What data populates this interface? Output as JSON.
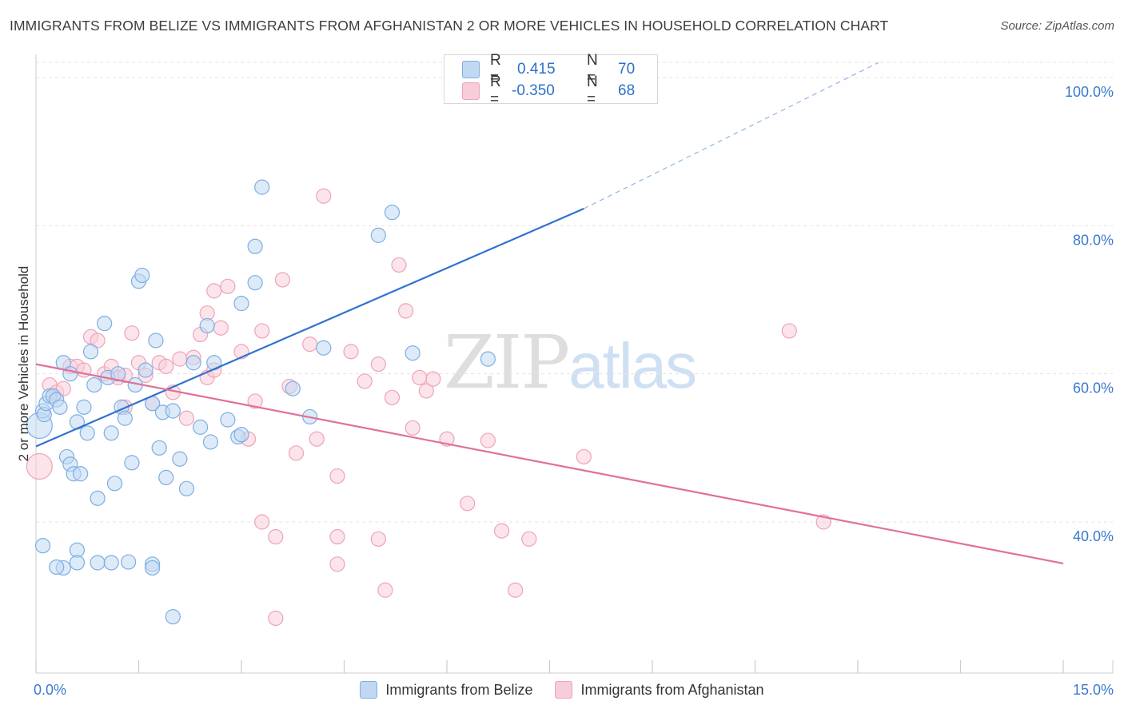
{
  "title": "IMMIGRANTS FROM BELIZE VS IMMIGRANTS FROM AFGHANISTAN 2 OR MORE VEHICLES IN HOUSEHOLD CORRELATION CHART",
  "source": "Source: ZipAtlas.com",
  "watermark": {
    "zip": "ZIP",
    "atlas": "atlas"
  },
  "legend": {
    "belize": {
      "r_label": "R =",
      "r_value": "0.415",
      "n_label": "N =",
      "n_value": "70"
    },
    "afghanistan": {
      "r_label": "R =",
      "r_value": "-0.350",
      "n_label": "N =",
      "n_value": "68"
    }
  },
  "colors": {
    "belize": "#2f72cf",
    "afghanistan": "#e0709a",
    "belize_fill": "#c1d8f3",
    "afghanistan_fill": "#f7cdd9",
    "tick_label": "#3b78cf"
  },
  "chart_data": {
    "type": "scatter",
    "title": "IMMIGRANTS FROM BELIZE VS IMMIGRANTS FROM AFGHANISTAN 2 OR MORE VEHICLES IN HOUSEHOLD CORRELATION CHART",
    "xlabel": "",
    "ylabel": "2 or more Vehicles in Household",
    "xlim": [
      0,
      15
    ],
    "ylim": [
      20,
      102
    ],
    "x_tick_labels": [
      "0.0%",
      "15.0%"
    ],
    "y_ticks": [
      40,
      60,
      80,
      100
    ],
    "y_tick_labels": [
      "40.0%",
      "60.0%",
      "80.0%",
      "100.0%"
    ],
    "grid": true,
    "legend_position": "top-center",
    "series": [
      {
        "name": "Immigrants from Belize",
        "r": 0.415,
        "n": 70,
        "trend": {
          "x0": 0,
          "y0": 50.2,
          "x1": 8.0,
          "y1": 82.3,
          "dashed_to_x": 12.3,
          "dashed_to_y": 102
        },
        "points": [
          [
            0.05,
            53.0
          ],
          [
            0.1,
            55.0
          ],
          [
            0.12,
            54.5
          ],
          [
            0.15,
            56.0
          ],
          [
            0.2,
            57.0
          ],
          [
            0.25,
            57.0
          ],
          [
            0.3,
            56.5
          ],
          [
            0.35,
            55.5
          ],
          [
            0.4,
            61.5
          ],
          [
            0.45,
            48.8
          ],
          [
            0.5,
            60.0
          ],
          [
            0.5,
            47.8
          ],
          [
            0.55,
            46.5
          ],
          [
            0.6,
            53.5
          ],
          [
            0.65,
            46.5
          ],
          [
            0.7,
            55.5
          ],
          [
            0.75,
            52.0
          ],
          [
            0.8,
            63.0
          ],
          [
            0.85,
            58.5
          ],
          [
            0.9,
            43.2
          ],
          [
            1.0,
            66.8
          ],
          [
            1.05,
            59.5
          ],
          [
            1.1,
            52.0
          ],
          [
            1.15,
            45.2
          ],
          [
            1.2,
            60.0
          ],
          [
            1.25,
            55.5
          ],
          [
            1.3,
            54.0
          ],
          [
            1.4,
            48.0
          ],
          [
            1.45,
            58.5
          ],
          [
            1.5,
            72.5
          ],
          [
            1.55,
            73.3
          ],
          [
            1.6,
            60.5
          ],
          [
            1.7,
            56.0
          ],
          [
            1.75,
            64.5
          ],
          [
            1.8,
            50.0
          ],
          [
            1.85,
            54.8
          ],
          [
            1.9,
            46.0
          ],
          [
            2.0,
            55.0
          ],
          [
            2.1,
            48.5
          ],
          [
            2.2,
            44.5
          ],
          [
            2.3,
            61.5
          ],
          [
            2.4,
            52.8
          ],
          [
            2.5,
            66.5
          ],
          [
            2.55,
            50.8
          ],
          [
            2.6,
            61.5
          ],
          [
            2.8,
            53.8
          ],
          [
            2.95,
            51.5
          ],
          [
            3.0,
            69.5
          ],
          [
            3.2,
            77.2
          ],
          [
            3.2,
            72.3
          ],
          [
            3.0,
            51.8
          ],
          [
            3.75,
            58.0
          ],
          [
            4.0,
            54.2
          ],
          [
            4.2,
            63.5
          ],
          [
            5.0,
            78.7
          ],
          [
            5.2,
            81.8
          ],
          [
            5.5,
            62.8
          ],
          [
            6.6,
            62.0
          ],
          [
            3.3,
            85.2
          ],
          [
            0.1,
            36.8
          ],
          [
            0.6,
            36.2
          ],
          [
            0.6,
            34.5
          ],
          [
            0.4,
            33.8
          ],
          [
            0.9,
            34.5
          ],
          [
            1.1,
            34.5
          ],
          [
            1.35,
            34.6
          ],
          [
            1.7,
            34.3
          ],
          [
            1.7,
            33.8
          ],
          [
            2.0,
            27.2
          ],
          [
            0.3,
            33.9
          ]
        ]
      },
      {
        "name": "Immigrants from Afghanistan",
        "r": -0.35,
        "n": 68,
        "trend": {
          "x0": 0,
          "y0": 61.3,
          "x1": 15.0,
          "y1": 34.4
        },
        "points": [
          [
            0.05,
            47.5
          ],
          [
            0.2,
            58.5
          ],
          [
            0.3,
            57.5
          ],
          [
            0.4,
            58.0
          ],
          [
            0.5,
            61.0
          ],
          [
            0.6,
            61.0
          ],
          [
            0.7,
            60.5
          ],
          [
            0.8,
            65.0
          ],
          [
            0.9,
            64.5
          ],
          [
            1.0,
            60.0
          ],
          [
            1.1,
            61.0
          ],
          [
            1.2,
            59.5
          ],
          [
            1.3,
            55.5
          ],
          [
            1.4,
            65.5
          ],
          [
            1.5,
            61.5
          ],
          [
            1.6,
            59.8
          ],
          [
            1.7,
            56.0
          ],
          [
            1.8,
            61.5
          ],
          [
            1.9,
            61.0
          ],
          [
            2.0,
            57.5
          ],
          [
            2.1,
            62.0
          ],
          [
            2.2,
            54.0
          ],
          [
            2.3,
            62.2
          ],
          [
            2.4,
            65.3
          ],
          [
            2.5,
            68.2
          ],
          [
            2.6,
            71.2
          ],
          [
            2.7,
            66.2
          ],
          [
            2.8,
            71.8
          ],
          [
            3.0,
            63.0
          ],
          [
            3.1,
            51.2
          ],
          [
            3.2,
            56.3
          ],
          [
            3.3,
            65.8
          ],
          [
            3.6,
            72.7
          ],
          [
            3.7,
            58.3
          ],
          [
            3.8,
            49.3
          ],
          [
            4.0,
            64.0
          ],
          [
            4.1,
            51.2
          ],
          [
            4.2,
            84.0
          ],
          [
            4.4,
            46.2
          ],
          [
            4.6,
            63.0
          ],
          [
            4.8,
            59.0
          ],
          [
            5.0,
            61.3
          ],
          [
            5.2,
            56.8
          ],
          [
            5.3,
            74.7
          ],
          [
            5.4,
            68.5
          ],
          [
            5.5,
            52.7
          ],
          [
            5.6,
            59.5
          ],
          [
            5.7,
            57.7
          ],
          [
            5.8,
            59.3
          ],
          [
            6.0,
            51.2
          ],
          [
            6.3,
            42.5
          ],
          [
            6.6,
            51.0
          ],
          [
            6.8,
            38.8
          ],
          [
            7.0,
            30.8
          ],
          [
            7.2,
            37.7
          ],
          [
            8.0,
            48.8
          ],
          [
            11.0,
            65.8
          ],
          [
            11.5,
            40.0
          ],
          [
            3.3,
            40.0
          ],
          [
            3.5,
            38.0
          ],
          [
            4.4,
            38.0
          ],
          [
            4.4,
            34.3
          ],
          [
            5.0,
            37.7
          ],
          [
            5.1,
            30.8
          ],
          [
            3.5,
            27.0
          ],
          [
            2.5,
            59.5
          ],
          [
            2.6,
            60.5
          ],
          [
            1.3,
            59.8
          ]
        ]
      }
    ]
  },
  "legend_bottom": [
    "Immigrants from Belize",
    "Immigrants from Afghanistan"
  ]
}
